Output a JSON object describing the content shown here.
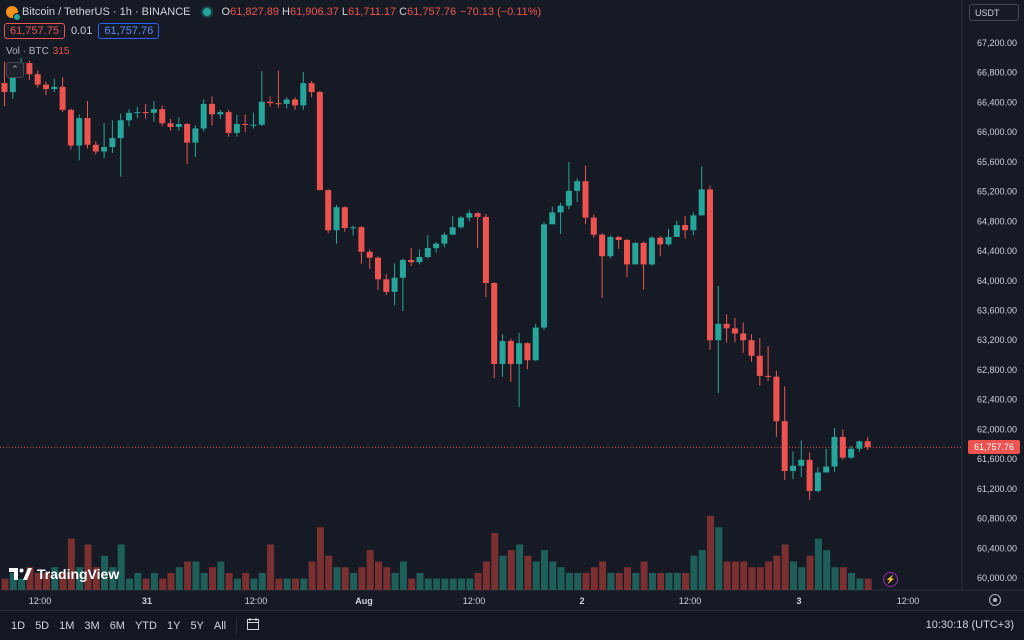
{
  "header": {
    "symbol": "Bitcoin / TetherUS · 1h · BINANCE",
    "ohlc": [
      {
        "label": "O",
        "value": "61,827.89"
      },
      {
        "label": "H",
        "value": "61,906.37"
      },
      {
        "label": "L",
        "value": "61,711.17"
      },
      {
        "label": "C",
        "value": "61,757.76"
      }
    ],
    "change": "−70.13 (−0.11%)",
    "bid": "61,757.75",
    "spread": "0.01",
    "ask": "61,757.76",
    "volume_label": "Vol · BTC",
    "volume_value": "315",
    "currency": "USDT"
  },
  "chart_data": {
    "type": "candlestick",
    "y_ticks": [
      "67,200.00",
      "66,800.00",
      "66,400.00",
      "66,000.00",
      "65,600.00",
      "65,200.00",
      "64,800.00",
      "64,400.00",
      "64,000.00",
      "63,600.00",
      "63,200.00",
      "62,800.00",
      "62,400.00",
      "62,000.00",
      "61,600.00",
      "61,200.00",
      "60,800.00",
      "60,400.00",
      "60,000.00"
    ],
    "x_ticks": [
      "12:00",
      "31",
      "12:00",
      "Aug",
      "12:00",
      "2",
      "12:00",
      "3",
      "12:00"
    ],
    "current_price_label": "61,757.76",
    "colors": {
      "up": "#26a69a",
      "down": "#ef5350",
      "up_vol": "#1f5f5a",
      "down_vol": "#7a2f30"
    },
    "candles": [
      [
        66660,
        66540,
        66950,
        66350,
        2
      ],
      [
        66540,
        66820,
        66920,
        66450,
        3
      ],
      [
        66820,
        66930,
        67000,
        66780,
        2
      ],
      [
        66930,
        66780,
        66960,
        66700,
        4
      ],
      [
        66780,
        66640,
        66830,
        66600,
        3
      ],
      [
        66640,
        66580,
        66680,
        66500,
        3
      ],
      [
        66580,
        66610,
        66720,
        66540,
        4
      ],
      [
        66610,
        66300,
        66740,
        66270,
        3
      ],
      [
        66300,
        65820,
        66320,
        65770,
        9
      ],
      [
        65820,
        66190,
        66240,
        65620,
        4
      ],
      [
        66190,
        65830,
        66420,
        65780,
        8
      ],
      [
        65830,
        65740,
        65880,
        65700,
        4
      ],
      [
        65740,
        65800,
        66120,
        65650,
        6
      ],
      [
        65800,
        65920,
        66160,
        65720,
        4
      ],
      [
        65920,
        66160,
        66250,
        65400,
        8
      ],
      [
        66160,
        66260,
        66310,
        66080,
        2
      ],
      [
        66260,
        66270,
        66340,
        66190,
        3
      ],
      [
        66270,
        66260,
        66380,
        66180,
        2
      ],
      [
        66260,
        66310,
        66420,
        66140,
        3
      ],
      [
        66310,
        66120,
        66360,
        66080,
        2
      ],
      [
        66120,
        66070,
        66180,
        66020,
        3
      ],
      [
        66070,
        66110,
        66200,
        66020,
        4
      ],
      [
        66110,
        65860,
        66120,
        65570,
        5
      ],
      [
        65860,
        66050,
        66090,
        65670,
        5
      ],
      [
        66050,
        66380,
        66440,
        66010,
        3
      ],
      [
        66380,
        66240,
        66480,
        66090,
        4
      ],
      [
        66240,
        66270,
        66300,
        66180,
        5
      ],
      [
        66270,
        65990,
        66300,
        65940,
        3
      ],
      [
        65990,
        66110,
        66230,
        65940,
        2
      ],
      [
        66110,
        66100,
        66240,
        66000,
        3
      ],
      [
        66100,
        66100,
        66260,
        66050,
        2
      ],
      [
        66100,
        66410,
        66820,
        66080,
        3
      ],
      [
        66410,
        66390,
        66480,
        66340,
        8
      ],
      [
        66390,
        66380,
        66830,
        66330,
        2
      ],
      [
        66380,
        66440,
        66470,
        66320,
        2
      ],
      [
        66440,
        66360,
        66470,
        66300,
        2
      ],
      [
        66360,
        66660,
        66810,
        66300,
        2
      ],
      [
        66660,
        66540,
        66690,
        66470,
        5
      ],
      [
        66540,
        65220,
        66560,
        65220,
        11
      ],
      [
        65220,
        64680,
        65230,
        64640,
        6
      ],
      [
        64680,
        64990,
        65020,
        64500,
        4
      ],
      [
        64990,
        64710,
        65000,
        64660,
        4
      ],
      [
        64710,
        64720,
        64740,
        64610,
        3
      ],
      [
        64720,
        64390,
        64740,
        64230,
        4
      ],
      [
        64390,
        64310,
        64420,
        64160,
        7
      ],
      [
        64310,
        64020,
        64330,
        63880,
        5
      ],
      [
        64020,
        63850,
        64090,
        63810,
        4
      ],
      [
        63850,
        64040,
        64230,
        63670,
        3
      ],
      [
        64040,
        64280,
        64300,
        63590,
        5
      ],
      [
        64280,
        64250,
        64440,
        64200,
        2
      ],
      [
        64250,
        64320,
        64420,
        64220,
        3
      ],
      [
        64320,
        64440,
        64610,
        64300,
        2
      ],
      [
        64440,
        64500,
        64520,
        64380,
        2
      ],
      [
        64500,
        64620,
        64650,
        64450,
        2
      ],
      [
        64620,
        64720,
        64870,
        64620,
        2
      ],
      [
        64720,
        64850,
        64870,
        64700,
        2
      ],
      [
        64850,
        64910,
        64950,
        64800,
        2
      ],
      [
        64910,
        64860,
        64920,
        64440,
        3
      ],
      [
        64860,
        63970,
        64900,
        63780,
        5
      ],
      [
        63970,
        62880,
        63980,
        62690,
        10
      ],
      [
        62880,
        63190,
        63280,
        62710,
        6
      ],
      [
        63190,
        62880,
        63220,
        62640,
        7
      ],
      [
        62880,
        63160,
        63300,
        62300,
        8
      ],
      [
        63160,
        62930,
        63170,
        62810,
        6
      ],
      [
        62930,
        63370,
        63420,
        62920,
        5
      ],
      [
        63370,
        64760,
        64790,
        63340,
        7
      ],
      [
        64760,
        64920,
        65000,
        64760,
        5
      ],
      [
        64920,
        65010,
        65050,
        64630,
        4
      ],
      [
        65010,
        65210,
        65600,
        64960,
        3
      ],
      [
        65210,
        65340,
        65380,
        65060,
        3
      ],
      [
        65340,
        64850,
        65550,
        64760,
        3
      ],
      [
        64850,
        64620,
        64890,
        64580,
        4
      ],
      [
        64620,
        64330,
        64640,
        63770,
        5
      ],
      [
        64330,
        64590,
        64610,
        64300,
        3
      ],
      [
        64590,
        64550,
        64600,
        64430,
        3
      ],
      [
        64550,
        64220,
        64560,
        64050,
        4
      ],
      [
        64220,
        64510,
        64520,
        64260,
        3
      ],
      [
        64510,
        64220,
        64530,
        63880,
        5
      ],
      [
        64220,
        64580,
        64600,
        64200,
        3
      ],
      [
        64580,
        64490,
        64600,
        64330,
        3
      ],
      [
        64490,
        64590,
        64700,
        64470,
        3
      ],
      [
        64590,
        64750,
        64810,
        64660,
        3
      ],
      [
        64750,
        64680,
        64870,
        64570,
        3
      ],
      [
        64680,
        64880,
        64920,
        64610,
        6
      ],
      [
        64880,
        65230,
        65540,
        64880,
        7
      ],
      [
        65230,
        63200,
        65280,
        63070,
        13
      ],
      [
        63200,
        63420,
        63930,
        62490,
        11
      ],
      [
        63420,
        63360,
        63550,
        63170,
        5
      ],
      [
        63360,
        63290,
        63500,
        63170,
        5
      ],
      [
        63290,
        63200,
        63440,
        63030,
        5
      ],
      [
        63200,
        62990,
        63280,
        62910,
        4
      ],
      [
        62990,
        62720,
        63230,
        62590,
        4
      ],
      [
        62720,
        62710,
        63120,
        62650,
        5
      ],
      [
        62710,
        62110,
        62790,
        61900,
        6
      ],
      [
        62110,
        61440,
        62580,
        61320,
        8
      ],
      [
        61440,
        61510,
        61700,
        61330,
        5
      ],
      [
        61510,
        61590,
        61850,
        61360,
        4
      ],
      [
        61590,
        61170,
        61690,
        61050,
        6
      ],
      [
        61170,
        61420,
        61490,
        61150,
        9
      ],
      [
        61420,
        61500,
        61740,
        61420,
        7
      ],
      [
        61500,
        61900,
        62020,
        61430,
        4
      ],
      [
        61900,
        61620,
        62000,
        61590,
        4
      ],
      [
        61620,
        61740,
        61780,
        61600,
        3
      ],
      [
        61740,
        61840,
        61850,
        61700,
        2
      ],
      [
        61840,
        61760,
        61900,
        61720,
        2
      ]
    ]
  },
  "footer": {
    "timeframes": [
      "1D",
      "5D",
      "1M",
      "3M",
      "6M",
      "YTD",
      "1Y",
      "5Y",
      "All"
    ],
    "clock": "10:30:18 (UTC+3)",
    "logo": "TradingView"
  }
}
